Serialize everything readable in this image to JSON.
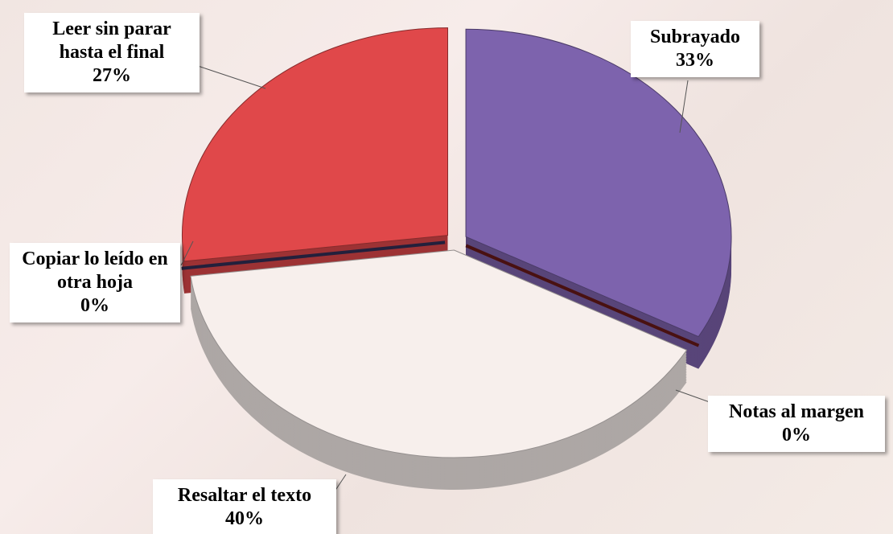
{
  "chart_data": {
    "type": "pie",
    "categories": [
      "Subrayado",
      "Notas al margen",
      "Resaltar el texto",
      "Copiar lo leído en otra hoja",
      "Leer sin parar hasta el final"
    ],
    "values": [
      33,
      0,
      40,
      0,
      27
    ],
    "value_labels": [
      "33%",
      "0%",
      "40%",
      "0%",
      "27%"
    ],
    "colors": [
      "#7d63ad",
      "#7a1c1c",
      "#f7efec",
      "#3a3564",
      "#e0484a"
    ]
  }
}
